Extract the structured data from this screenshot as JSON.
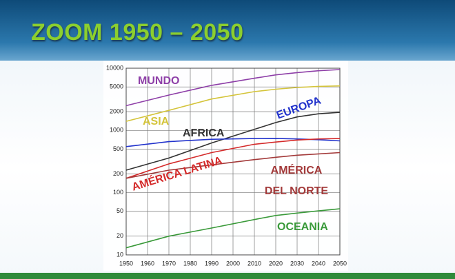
{
  "slide": {
    "title": "ZOOM 1950 – 2050"
  },
  "chart_data": {
    "type": "line",
    "x": [
      1950,
      1970,
      1990,
      2010,
      2020,
      2030,
      2040,
      2050
    ],
    "xlim": [
      1950,
      2050
    ],
    "xticks": [
      1950,
      1960,
      1970,
      1980,
      1990,
      2000,
      2010,
      2020,
      2030,
      2040,
      2050
    ],
    "ylim": [
      10,
      10000
    ],
    "yticks": [
      10,
      20,
      50,
      100,
      200,
      500,
      1000,
      2000,
      5000,
      10000
    ],
    "log_y": true,
    "grid": true,
    "series": [
      {
        "name": "MUNDO",
        "color": "#8e3fa8",
        "values": [
          2500,
          3700,
          5300,
          6900,
          7800,
          8500,
          9100,
          9500
        ]
      },
      {
        "name": "ASIA",
        "color": "#d4c43a",
        "values": [
          1400,
          2100,
          3200,
          4200,
          4600,
          4900,
          5100,
          5200
        ]
      },
      {
        "name": "AFRICA",
        "color": "#333333",
        "values": [
          230,
          360,
          630,
          1040,
          1340,
          1650,
          1850,
          1950
        ]
      },
      {
        "name": "EUROPA",
        "color": "#2233cc",
        "values": [
          550,
          660,
          720,
          740,
          745,
          730,
          710,
          680
        ]
      },
      {
        "name": "AMÉRICA LATINA",
        "color": "#d42a2a",
        "values": [
          170,
          290,
          440,
          600,
          650,
          700,
          730,
          740
        ]
      },
      {
        "name": "AMÉRICA DEL NORTE",
        "color": "#a33a3a",
        "values": [
          170,
          230,
          280,
          340,
          370,
          400,
          420,
          440
        ]
      },
      {
        "name": "OCEANIA",
        "color": "#3a9a3a",
        "values": [
          13,
          20,
          27,
          37,
          43,
          47,
          51,
          55
        ]
      }
    ]
  }
}
